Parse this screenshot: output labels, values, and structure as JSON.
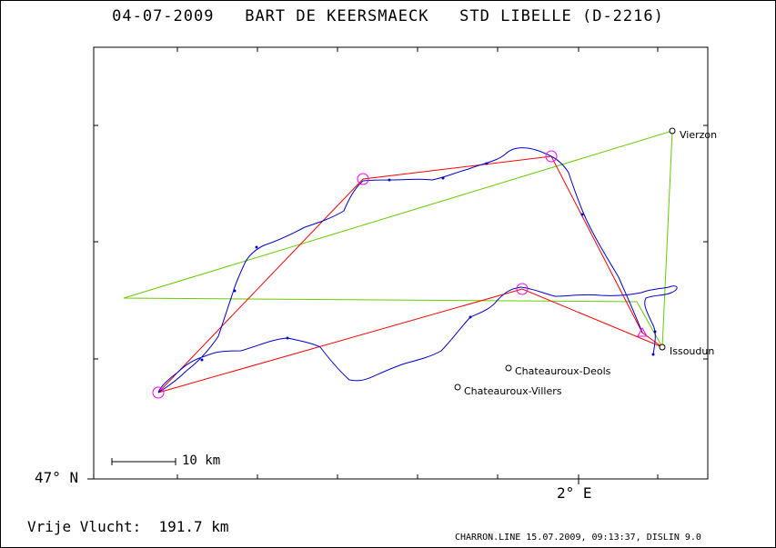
{
  "header": {
    "date": "04-07-2009",
    "pilot": "BART DE KEERSMAECK",
    "glider": "STD LIBELLE (D-2216)"
  },
  "map": {
    "lat_label": "47° N",
    "lon_label": "2° E",
    "scale_label": "10 km",
    "places": [
      {
        "name": "Vierzon"
      },
      {
        "name": "Issoudun"
      },
      {
        "name": "Chateauroux-Deols"
      },
      {
        "name": "Chateauroux-Villers"
      }
    ],
    "colors": {
      "track": "#0000cc",
      "task": "#ff0000",
      "turnpoint": "#ff00ff",
      "reference": "#66cc00"
    }
  },
  "footer": {
    "flight_label": "Vrije Vlucht:",
    "distance": "191.7 km",
    "file_info": "CHARRON.LINE 15.07.2009, 09:13:37, DISLIN 9.0"
  }
}
